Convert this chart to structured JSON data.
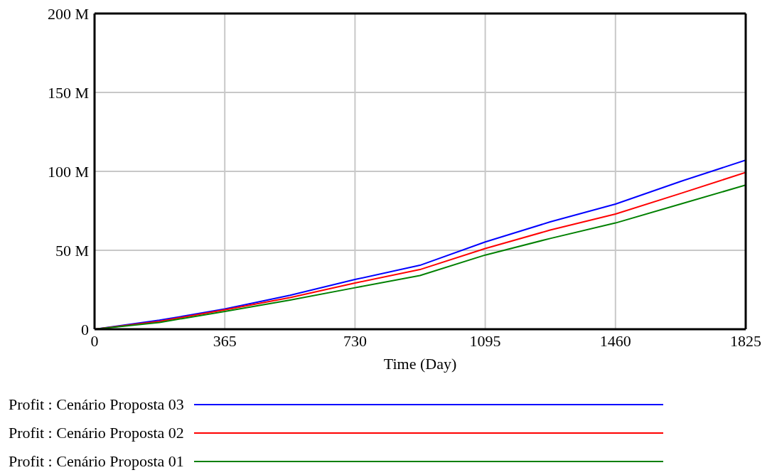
{
  "chart_data": {
    "type": "line",
    "xlabel": "Time (Day)",
    "x": [
      0,
      182,
      365,
      548,
      730,
      912,
      1095,
      1277,
      1460,
      1642,
      1825
    ],
    "series": [
      {
        "name": "Profit : Cenário Proposta 03",
        "color": "#0000ff",
        "values": [
          0,
          5.7,
          12.8,
          21.5,
          31.5,
          40.5,
          55.3,
          68,
          79.3,
          93.6,
          107.1
        ]
      },
      {
        "name": "Profit : Cenário Proposta 02",
        "color": "#ff0000",
        "values": [
          0,
          5,
          12.3,
          20,
          29.3,
          37.8,
          51.1,
          62.8,
          73,
          86,
          99.3
        ]
      },
      {
        "name": "Profit : Cenário Proposta 01",
        "color": "#008000",
        "values": [
          0,
          4.3,
          11.3,
          18.5,
          26.3,
          34,
          47,
          57.5,
          67.3,
          79.3,
          91.3
        ]
      }
    ],
    "xlim": [
      0,
      1825
    ],
    "xticks": [
      0,
      365,
      730,
      1095,
      1460,
      1825
    ],
    "ylim": [
      0,
      200
    ],
    "yticks": [
      0,
      {
        "value": 50,
        "label": "50 M"
      },
      {
        "value": 100,
        "label": "100 M"
      },
      {
        "value": 150,
        "label": "150 M"
      },
      {
        "value": 200,
        "label": "200 M"
      }
    ],
    "grid": true,
    "legend": "bottom",
    "marker": "none",
    "line_style": "solid"
  }
}
